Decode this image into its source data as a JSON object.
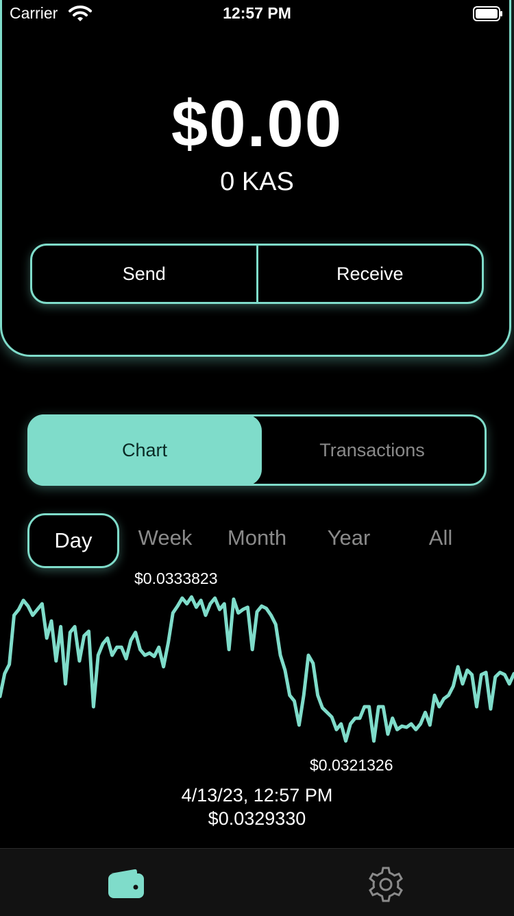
{
  "status_bar": {
    "carrier": "Carrier",
    "time": "12:57 PM"
  },
  "balance": {
    "fiat": "$0.00",
    "kas": "0 KAS"
  },
  "actions": {
    "send": "Send",
    "receive": "Receive"
  },
  "segments": {
    "chart": "Chart",
    "transactions": "Transactions",
    "selected": "Chart"
  },
  "ranges": {
    "day": "Day",
    "week": "Week",
    "month": "Month",
    "year": "Year",
    "all": "All",
    "selected": "Day"
  },
  "chart_data": {
    "type": "line",
    "high_label": "$0.0333823",
    "low_label": "$0.0321326",
    "selected_date": "4/13/23, 12:57 PM",
    "selected_price": "$0.0329330",
    "series": [
      {
        "values": [
          0.03249,
          0.03269,
          0.03277,
          0.0332,
          0.03325,
          0.03333,
          0.03328,
          0.0332,
          0.03325,
          0.0333,
          0.033,
          0.03315,
          0.0328,
          0.0331,
          0.0326,
          0.03305,
          0.0331,
          0.0328,
          0.03302,
          0.03306,
          0.0324,
          0.03285,
          0.03295,
          0.033,
          0.03285,
          0.03292,
          0.03292,
          0.03282,
          0.03298,
          0.03305,
          0.0329,
          0.03285,
          0.03287,
          0.03284,
          0.03292,
          0.03275,
          0.03296,
          0.03322,
          0.03328,
          0.03335,
          0.0333,
          0.03336,
          0.03327,
          0.03333,
          0.0332,
          0.0333,
          0.03335,
          0.03325,
          0.0333,
          0.0329,
          0.03334,
          0.03322,
          0.03325,
          0.03327,
          0.0329,
          0.03323,
          0.03328,
          0.03326,
          0.0332,
          0.03312,
          0.03285,
          0.03272,
          0.0325,
          0.03245,
          0.03224,
          0.0325,
          0.03285,
          0.03278,
          0.0325,
          0.03239,
          0.03235,
          0.03231,
          0.0322,
          0.03225,
          0.0321,
          0.03225,
          0.0323,
          0.0323,
          0.0324,
          0.0324,
          0.0321,
          0.0324,
          0.0324,
          0.03216,
          0.0323,
          0.0322,
          0.03223,
          0.03222,
          0.03225,
          0.0322,
          0.03225,
          0.03235,
          0.03224,
          0.0325,
          0.0324,
          0.03247,
          0.0325,
          0.03258,
          0.03275,
          0.0326,
          0.03272,
          0.03268,
          0.0324,
          0.03268,
          0.0327,
          0.03238,
          0.03266,
          0.0327,
          0.03268,
          0.0326,
          0.03269
        ]
      }
    ]
  },
  "tab_bar": {
    "selected": "wallet"
  },
  "colors": {
    "accent": "#7fdcca",
    "background": "#000000",
    "muted": "#8a8a8a"
  },
  "icons": {
    "wallet": "wallet-icon",
    "settings": "gear-icon",
    "wifi": "wifi-icon",
    "battery": "battery-icon"
  }
}
